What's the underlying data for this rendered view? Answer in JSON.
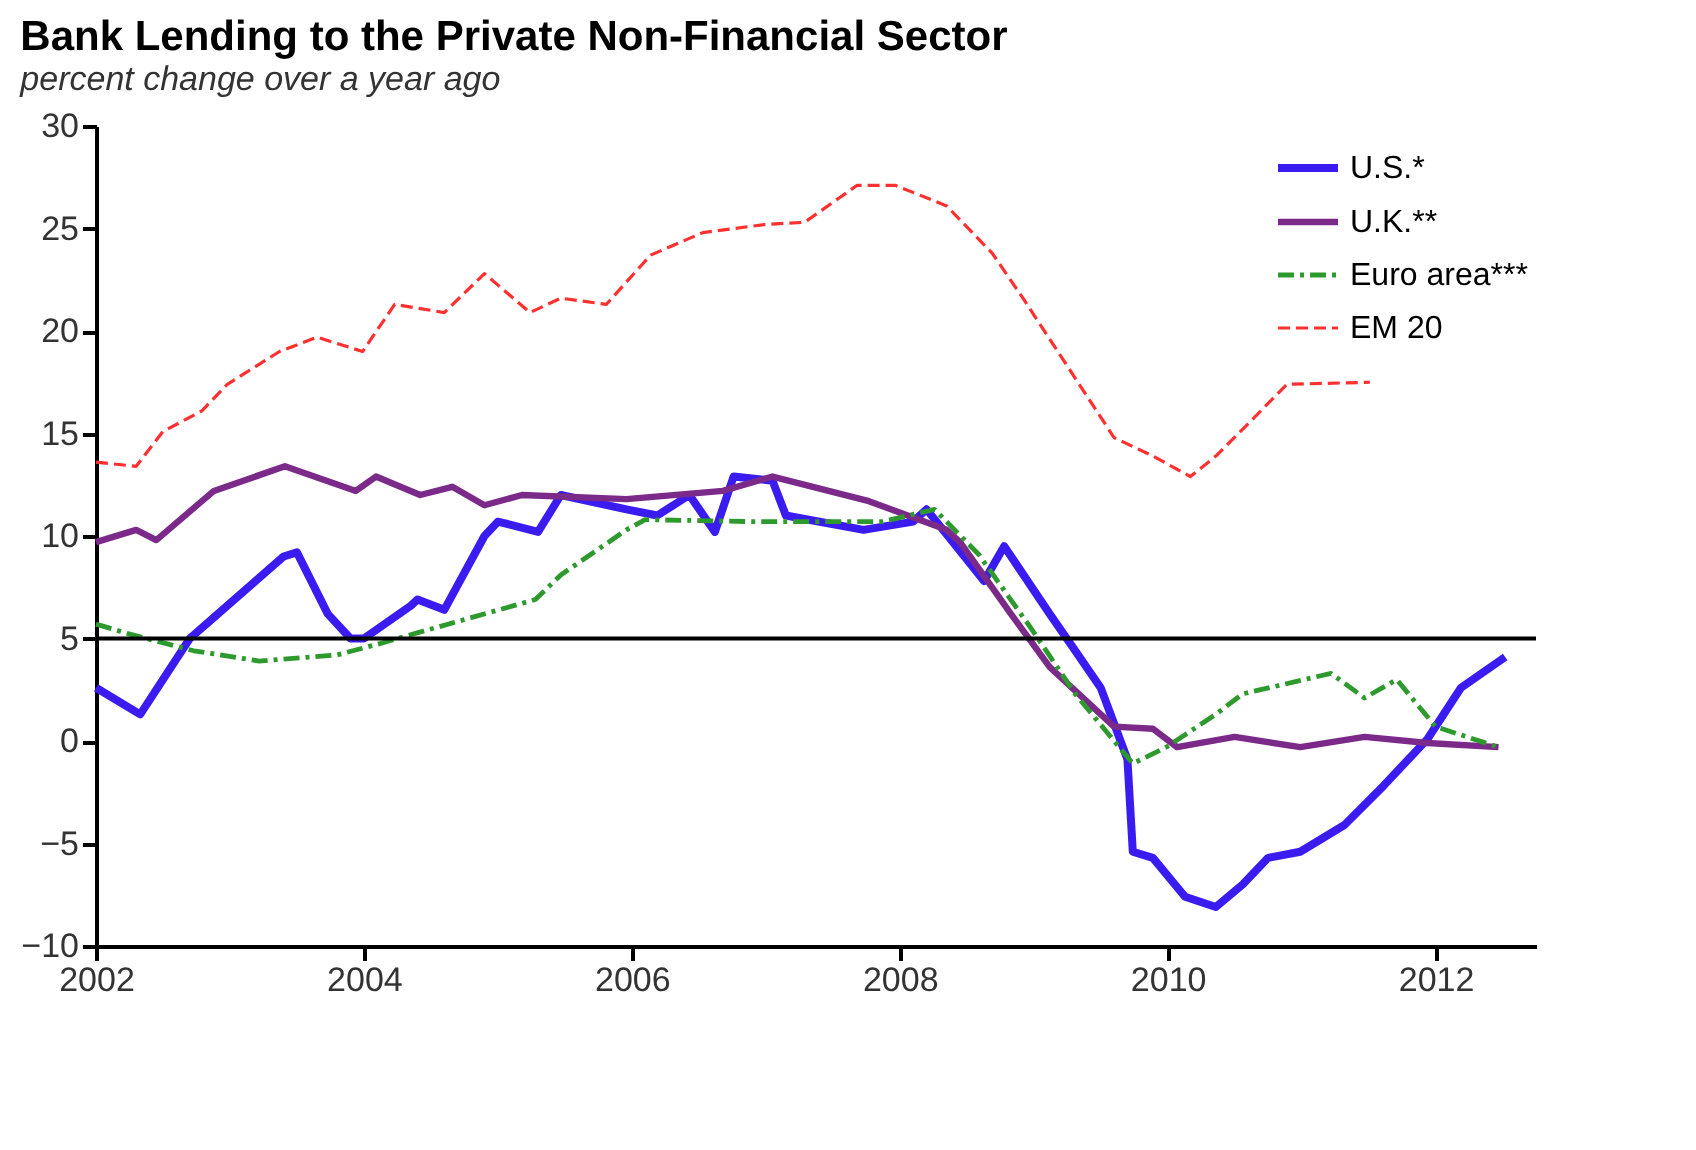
{
  "chart_data": {
    "type": "line",
    "title": "Bank Lending to the Private Non-Financial Sector",
    "subtitle": "percent change over a year ago",
    "xlim": [
      2002,
      2012.75
    ],
    "xticks": [
      2002,
      2004,
      2006,
      2008,
      2010,
      2012
    ],
    "ylim": [
      -10,
      30
    ],
    "yticks": [
      -10,
      -5,
      0,
      5,
      10,
      15,
      20,
      25,
      30
    ],
    "grid": false,
    "legend": "top right",
    "marker": "none",
    "ref_lines": [
      {
        "axis": "y",
        "value": 5,
        "color": "#000000",
        "line_style": "solid"
      }
    ],
    "series": [
      {
        "name": "U.S.*",
        "color": "#3a1cf0",
        "line_style": "solid",
        "x": [
          2002.0,
          2002.33,
          2002.7,
          2003.4,
          2003.5,
          2003.73,
          2003.9,
          2004.0,
          2004.35,
          2004.4,
          2004.6,
          2004.7,
          2004.9,
          2005.0,
          2005.3,
          2005.47,
          2005.96,
          2006.19,
          2006.43,
          2006.62,
          2006.76,
          2007.05,
          2007.15,
          2007.73,
          2008.1,
          2008.2,
          2008.63,
          2008.78,
          2009.12,
          2009.3,
          2009.5,
          2009.7,
          2009.74,
          2009.89,
          2010.13,
          2010.36,
          2010.56,
          2010.75,
          2010.99,
          2011.32,
          2011.61,
          2011.94,
          2012.19,
          2012.52
        ],
        "values": [
          2.6,
          1.3,
          5,
          9,
          9.2,
          6.2,
          5,
          5,
          6.6,
          6.9,
          6.4,
          7.6,
          10,
          10.7,
          10.2,
          12,
          11.3,
          11,
          12,
          10.2,
          12.9,
          12.7,
          11,
          10.3,
          10.7,
          11.3,
          7.8,
          9.5,
          6.2,
          4.5,
          2.6,
          -0.9,
          -5.4,
          -5.7,
          -7.6,
          -8.1,
          -7,
          -5.7,
          -5.4,
          -4.1,
          -2.2,
          0.1,
          2.6,
          4.1
        ]
      },
      {
        "name": "U.K.**",
        "color": "#7b2a8a",
        "line_style": "solid",
        "x": [
          2002.0,
          2002.3,
          2002.45,
          2002.88,
          2003.41,
          2003.94,
          2004.09,
          2004.42,
          2004.66,
          2004.9,
          2005.18,
          2005.96,
          2006.68,
          2007.05,
          2007.77,
          2008.35,
          2008.45,
          2008.83,
          2009.12,
          2009.6,
          2009.89,
          2010.07,
          2010.5,
          2010.99,
          2011.47,
          2011.94,
          2012.47
        ],
        "values": [
          9.7,
          10.3,
          9.8,
          12.2,
          13.4,
          12.2,
          12.9,
          12,
          12.4,
          11.5,
          12,
          11.8,
          12.2,
          12.9,
          11.7,
          10.3,
          9.7,
          6.2,
          3.6,
          0.7,
          0.6,
          -0.3,
          0.2,
          -0.3,
          0.2,
          -0.1,
          -0.3
        ]
      },
      {
        "name": "Euro area***",
        "color": "#2e9a2e",
        "line_style": "dashdot",
        "x": [
          2002.0,
          2002.26,
          2002.73,
          2003.22,
          2003.8,
          2004.09,
          2004.52,
          2005.28,
          2005.47,
          2005.96,
          2006.1,
          2006.91,
          2007.87,
          2008.26,
          2008.59,
          2008.98,
          2009.31,
          2009.74,
          2009.99,
          2010.36,
          2010.56,
          2011.22,
          2011.47,
          2011.71,
          2012.0,
          2012.47
        ],
        "values": [
          5.7,
          5.2,
          4.4,
          3.9,
          4.2,
          4.7,
          5.5,
          6.9,
          8.1,
          10.3,
          10.8,
          10.7,
          10.7,
          11.3,
          9.1,
          5.5,
          2.3,
          -1.1,
          -0.3,
          1.3,
          2.3,
          3.3,
          2.1,
          3,
          0.7,
          -0.3
        ]
      },
      {
        "name": "EM 20",
        "color": "#ff3030",
        "line_style": "dashed",
        "x": [
          2002.0,
          2002.3,
          2002.5,
          2002.79,
          2002.98,
          2003.37,
          2003.65,
          2003.99,
          2004.23,
          2004.6,
          2004.9,
          2005.24,
          2005.47,
          2005.81,
          2006.14,
          2006.53,
          2007.0,
          2007.29,
          2007.68,
          2007.97,
          2008.35,
          2008.69,
          2008.92,
          2009.21,
          2009.6,
          2009.89,
          2010.17,
          2010.36,
          2010.65,
          2010.89,
          2011.51
        ],
        "values": [
          13.6,
          13.4,
          15.1,
          16.1,
          17.4,
          19,
          19.7,
          19,
          21.3,
          20.9,
          22.8,
          20.9,
          21.6,
          21.3,
          23.7,
          24.8,
          25.2,
          25.3,
          27.1,
          27.1,
          26.1,
          23.8,
          21.6,
          18.7,
          14.8,
          13.9,
          12.9,
          13.9,
          15.8,
          17.4,
          17.5
        ]
      }
    ]
  }
}
